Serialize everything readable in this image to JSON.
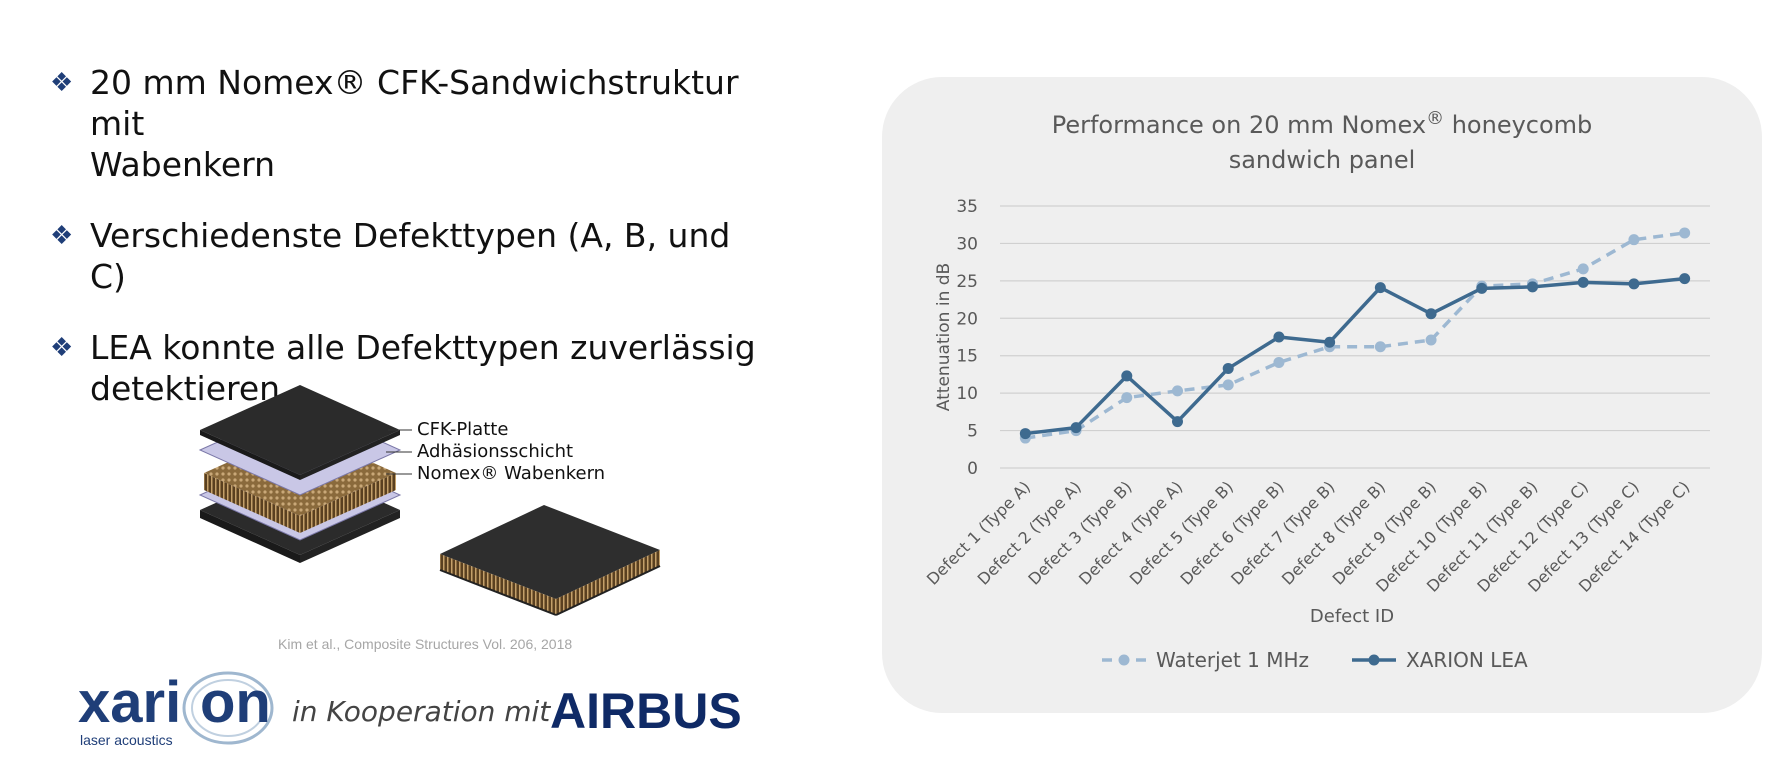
{
  "bullets": [
    {
      "icon": "diamond-bullet-icon",
      "lines": [
        "20 mm Nomex® CFK-Sandwichstruktur mit",
        "Wabenkern"
      ]
    },
    {
      "icon": "diamond-bullet-icon",
      "lines": [
        "Verschiedenste Defekttypen (A, B, und C)"
      ]
    },
    {
      "icon": "diamond-bullet-icon",
      "lines": [
        "LEA konnte alle Defekttypen zuverlässig",
        "detektieren"
      ]
    }
  ],
  "diagram": {
    "labels": {
      "top": "CFK-Platte",
      "middle": "Adhäsionsschicht",
      "bottom": "Nomex® Wabenkern"
    }
  },
  "citation": "Kim et al., Composite Structures Vol. 206, 2018",
  "logos": {
    "company": "xarion",
    "company_sub": "laser acoustics",
    "cooperation": "in Kooperation mit",
    "partner": "AIRBUS"
  },
  "chart_data": {
    "type": "line",
    "title_line1": "Performance on 20 mm Nomex",
    "title_sup": "®",
    "title_line1_end": " honeycomb",
    "title_line2": "sandwich panel",
    "xlabel": "Defect ID",
    "ylabel": "Attenuation in dB",
    "ylim": [
      0,
      35
    ],
    "yticks": [
      0,
      5,
      10,
      15,
      20,
      25,
      30,
      35
    ],
    "grid": true,
    "legend_position": "bottom",
    "categories": [
      "Defect 1 (Type A)",
      "Defect 2 (Type A)",
      "Defect 3 (Type B)",
      "Defect 4 (Type A)",
      "Defect 5 (Type B)",
      "Defect 6 (Type B)",
      "Defect 7 (Type B)",
      "Defect 8 (Type B)",
      "Defect 9 (Type B)",
      "Defect 10 (Type B)",
      "Defect 11 (Type B)",
      "Defect 12 (Type C)",
      "Defect 13 (Type C)",
      "Defect 14 (Type C)"
    ],
    "series": [
      {
        "name": "Waterjet 1 MHz",
        "color": "#9db8d2",
        "dashed": true,
        "values": [
          4,
          5,
          9.4,
          10.3,
          11.1,
          14.1,
          16.2,
          16.2,
          17.1,
          24.3,
          24.6,
          26.6,
          30.5,
          31.4
        ]
      },
      {
        "name": "XARION LEA",
        "color": "#3e6a8f",
        "dashed": false,
        "values": [
          4.6,
          5.4,
          12.3,
          6.2,
          13.3,
          17.5,
          16.8,
          24.1,
          20.6,
          24,
          24.2,
          24.8,
          24.6,
          25.3
        ]
      }
    ]
  }
}
